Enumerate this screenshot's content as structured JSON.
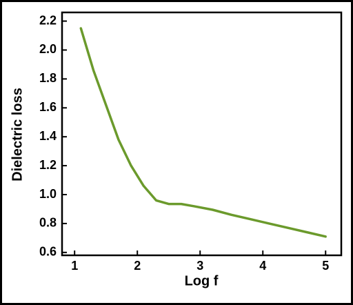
{
  "chart_data": {
    "type": "line",
    "xlabel": "Log f",
    "ylabel": "Dielectric loss",
    "x": [
      1.1,
      1.3,
      1.5,
      1.7,
      1.9,
      2.1,
      2.3,
      2.5,
      2.7,
      2.9,
      3.2,
      3.5,
      3.8,
      4.1,
      4.4,
      4.7,
      5.0
    ],
    "series": [
      {
        "color": "#6b9a2c",
        "values": [
          2.15,
          1.86,
          1.62,
          1.38,
          1.2,
          1.06,
          0.96,
          0.935,
          0.935,
          0.92,
          0.895,
          0.86,
          0.83,
          0.8,
          0.77,
          0.74,
          0.71
        ]
      }
    ],
    "xlim": [
      0.8,
      5.25
    ],
    "xticks": [
      1,
      2,
      3,
      4,
      5
    ],
    "ylim": [
      0.58,
      2.26
    ],
    "yticks": [
      {
        "value": 0.6,
        "label": "0.6"
      },
      {
        "value": 0.8,
        "label": "0.8"
      },
      {
        "value": 1.0,
        "label": "1.0"
      },
      {
        "value": 1.2,
        "label": "1.2"
      },
      {
        "value": 1.4,
        "label": "1.4"
      },
      {
        "value": 1.6,
        "label": "1.6"
      },
      {
        "value": 1.8,
        "label": "1.8"
      },
      {
        "value": 2.0,
        "label": "2.0"
      },
      {
        "value": 2.2,
        "label": "2.2"
      }
    ]
  }
}
